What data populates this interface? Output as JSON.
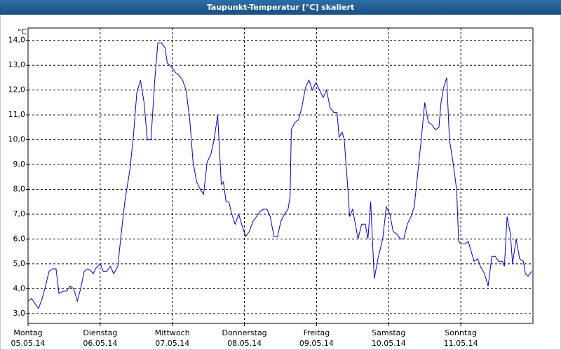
{
  "chart_data": {
    "type": "line",
    "title": "Taupunkt-Temperatur [°C] skaliert",
    "y_label": "°C",
    "color": "#0000c8",
    "grid": true,
    "xlim": [
      0,
      168
    ],
    "xticks": [
      {
        "value": 0,
        "label": "Montag"
      },
      {
        "value": 24,
        "label": "Dienstag"
      },
      {
        "value": 48,
        "label": "Mittwoch"
      },
      {
        "value": 72,
        "label": "Donnerstag"
      },
      {
        "value": 96,
        "label": "Freitag"
      },
      {
        "value": 120,
        "label": "Samstag"
      },
      {
        "value": 144,
        "label": "Sonntag"
      }
    ],
    "xtick_dates": [
      "05.05.14",
      "06.05.14",
      "07.05.14",
      "08.05.14",
      "09.05.14",
      "10.05.14",
      "11.05.14"
    ],
    "ylim": [
      2.6,
      14.5
    ],
    "yticks": [
      {
        "value": 3,
        "label": "3,0"
      },
      {
        "value": 4,
        "label": "4,0"
      },
      {
        "value": 5,
        "label": "5,0"
      },
      {
        "value": 6,
        "label": "6,0"
      },
      {
        "value": 7,
        "label": "7,0"
      },
      {
        "value": 8,
        "label": "8,0"
      },
      {
        "value": 9,
        "label": "9,0"
      },
      {
        "value": 10,
        "label": "10,0"
      },
      {
        "value": 11,
        "label": "11,0"
      },
      {
        "value": 12,
        "label": "12,0"
      },
      {
        "value": 13,
        "label": "13,0"
      },
      {
        "value": 14,
        "label": "14,0"
      }
    ],
    "x": [
      0,
      1.2,
      2.3,
      3.5,
      4.7,
      5.8,
      7.0,
      8.2,
      9.3,
      10.3,
      11.7,
      12.9,
      14.0,
      15.2,
      16.4,
      17.5,
      18.7,
      19.9,
      21.0,
      21.7,
      22.4,
      24.1,
      25.0,
      26.2,
      27.4,
      28.5,
      29.9,
      30.8,
      32.2,
      33.9,
      35.1,
      36.2,
      37.4,
      38.6,
      39.7,
      40.9,
      42.1,
      43.2,
      44.4,
      45.6,
      46.3,
      47.9,
      49.1,
      50.2,
      51.4,
      52.6,
      53.8,
      54.9,
      56.1,
      57.3,
      58.4,
      59.6,
      60.8,
      61.9,
      63.1,
      64.3,
      65.0,
      65.9,
      66.8,
      67.8,
      68.9,
      70.1,
      71.3,
      72.4,
      73.6,
      74.8,
      76.0,
      77.1,
      78.3,
      79.5,
      80.6,
      81.8,
      83.0,
      84.1,
      85.3,
      86.5,
      87.2,
      87.6,
      88.8,
      90.0,
      91.1,
      92.3,
      93.5,
      94.6,
      95.8,
      97.0,
      98.2,
      99.3,
      100.5,
      101.7,
      102.8,
      103.5,
      104.5,
      105.2,
      106.3,
      107.0,
      108.0,
      108.9,
      109.8,
      111.0,
      112.2,
      113.1,
      114.0,
      115.2,
      116.4,
      118.0,
      119.2,
      120.4,
      121.5,
      122.7,
      123.9,
      125.0,
      126.2,
      127.4,
      128.5,
      129.7,
      130.9,
      132.0,
      133.2,
      134.4,
      135.5,
      136.7,
      137.4,
      138.3,
      139.3,
      140.2,
      141.4,
      142.6,
      143.3,
      144.2,
      145.4,
      146.5,
      147.2,
      148.4,
      149.6,
      150.5,
      151.9,
      153.1,
      154.3,
      155.5,
      156.6,
      157.8,
      158.5,
      159.4,
      160.5,
      161.2,
      162.4,
      163.6,
      164.8,
      165.5,
      166.4,
      167.6
    ],
    "values": [
      3.5,
      3.6,
      3.4,
      3.2,
      3.6,
      4.1,
      4.7,
      4.8,
      4.8,
      3.8,
      3.9,
      3.9,
      4.1,
      4.0,
      3.5,
      4.0,
      4.7,
      4.8,
      4.7,
      4.6,
      4.8,
      5.0,
      4.7,
      4.7,
      4.9,
      4.6,
      4.9,
      6.0,
      7.5,
      8.8,
      10.2,
      11.9,
      12.4,
      11.5,
      10.0,
      10.0,
      12.3,
      13.9,
      13.9,
      13.7,
      13.1,
      12.9,
      12.7,
      12.6,
      12.4,
      12.0,
      10.8,
      9.1,
      8.3,
      8.0,
      7.8,
      9.1,
      9.4,
      10.0,
      11.0,
      8.2,
      8.3,
      7.5,
      7.5,
      7.0,
      6.6,
      7.0,
      6.5,
      6.1,
      6.3,
      6.7,
      6.9,
      7.1,
      7.2,
      7.2,
      6.9,
      6.1,
      6.1,
      6.7,
      7.0,
      7.2,
      7.7,
      10.4,
      10.7,
      10.8,
      11.3,
      12.1,
      12.4,
      12.0,
      12.3,
      12.0,
      11.7,
      12.0,
      11.3,
      11.1,
      11.1,
      10.1,
      10.3,
      10.0,
      8.2,
      6.9,
      7.2,
      6.6,
      6.0,
      6.6,
      6.6,
      6.0,
      7.5,
      4.4,
      5.2,
      6.0,
      7.3,
      7.0,
      6.3,
      6.2,
      6.0,
      6.0,
      6.6,
      6.9,
      7.3,
      8.7,
      10.1,
      11.5,
      10.7,
      10.6,
      10.4,
      10.5,
      11.5,
      12.1,
      12.5,
      10.0,
      9.1,
      8.0,
      5.9,
      5.8,
      5.8,
      5.9,
      5.6,
      5.1,
      5.2,
      4.9,
      4.6,
      4.1,
      5.3,
      5.3,
      5.1,
      5.1,
      4.9,
      6.9,
      6.2,
      5.0,
      6.0,
      5.2,
      5.1,
      4.6,
      4.5,
      4.7
    ]
  }
}
